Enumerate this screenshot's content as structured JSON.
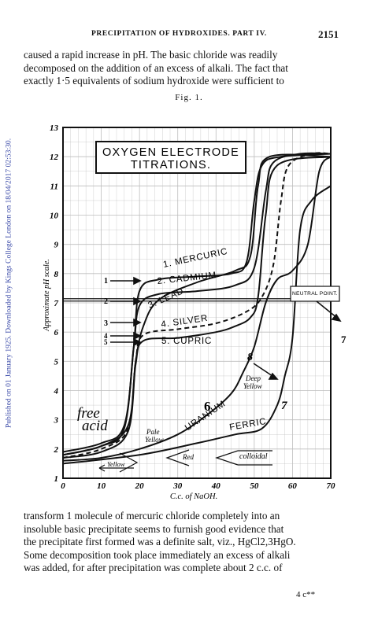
{
  "margin_note": "Published on 01 January 1925. Downloaded by Kings College London on 18/04/2017 02:53:30.",
  "header": {
    "running_head": "PRECIPITATION OF HYDROXIDES.  PART IV.",
    "page_number": "2151"
  },
  "top_text": {
    "line1": "caused a rapid increase in pH. The basic chloride was readily",
    "line2": "decomposed on the addition of an excess of alkali. The fact that",
    "line3": "exactly 1·5 equivalents of sodium hydroxide were sufficient to"
  },
  "figure": {
    "label": "Fig. 1.",
    "title_line1": "OXYGEN ELECTRODE",
    "title_line2": "TITRATIONS.",
    "ylabel": "Approximate pH scale.",
    "xlabel": "C.c. of NaOH.",
    "neutral_point": "NEUTRAL POINT.",
    "annotations": {
      "mercuric": "1. MERCURIC",
      "cadmium": "2. CADMIUM",
      "lead": "3. LEAD",
      "silver": "4. SILVER",
      "cupric": "5. CUPRIC",
      "uranium": "URANIUM",
      "ferric": "FERRIC",
      "num6": "6",
      "num7": "7",
      "num7b": "7",
      "num8": "8",
      "arrow1": "1",
      "arrow2": "2",
      "arrow3": "3",
      "arrow4": "4",
      "arrow5": "5",
      "free_acid1": "free",
      "free_acid2": "acid",
      "deep_yellow1": "Deep",
      "deep_yellow2": "Yellow",
      "pale_yellow1": "Pale",
      "pale_yellow2": "Yellow",
      "yellow": "Yellow",
      "red": "Red",
      "colloidal": "colloidal"
    }
  },
  "chart_data": {
    "type": "line",
    "title": "OXYGEN ELECTRODE TITRATIONS.",
    "xlabel": "C.c. of NaOH.",
    "ylabel": "Approximate pH scale.",
    "xlim": [
      0,
      70
    ],
    "ylim": [
      1,
      13
    ],
    "x_ticks": [
      "0",
      "10",
      "20",
      "30",
      "40",
      "50",
      "60",
      "70"
    ],
    "y_ticks": [
      "1",
      "2",
      "3",
      "4",
      "5",
      "6",
      "7",
      "8",
      "9",
      "10",
      "11",
      "12",
      "13"
    ],
    "neutral_point_ph": 7.1,
    "series": [
      {
        "name": "1. MERCURIC",
        "style": "solid",
        "points": [
          [
            0,
            1.9
          ],
          [
            10,
            2.2
          ],
          [
            16,
            2.8
          ],
          [
            18.5,
            5.5
          ],
          [
            20,
            7.4
          ],
          [
            25,
            7.8
          ],
          [
            35,
            7.9
          ],
          [
            44,
            8.0
          ],
          [
            48,
            8.4
          ],
          [
            50,
            10.5
          ],
          [
            52,
            11.7
          ],
          [
            57,
            12.0
          ],
          [
            70,
            12.1
          ]
        ]
      },
      {
        "name": "2. CADMIUM",
        "style": "solid",
        "points": [
          [
            0,
            1.8
          ],
          [
            10,
            2.1
          ],
          [
            16,
            2.7
          ],
          [
            18.5,
            5.5
          ],
          [
            20,
            6.9
          ],
          [
            25,
            7.3
          ],
          [
            35,
            7.4
          ],
          [
            45,
            7.6
          ],
          [
            50,
            8.2
          ],
          [
            53,
            10.8
          ],
          [
            55,
            11.8
          ],
          [
            62,
            12.1
          ],
          [
            70,
            12.1
          ]
        ]
      },
      {
        "name": "3. LEAD",
        "style": "solid",
        "points": [
          [
            0,
            1.8
          ],
          [
            10,
            2.1
          ],
          [
            17,
            2.8
          ],
          [
            19,
            5.0
          ],
          [
            21,
            6.2
          ],
          [
            25,
            7.1
          ],
          [
            35,
            7.7
          ],
          [
            45,
            8.1
          ],
          [
            49,
            8.6
          ],
          [
            51,
            11.0
          ],
          [
            54,
            12.0
          ],
          [
            70,
            12.0
          ]
        ]
      },
      {
        "name": "4. SILVER",
        "style": "dashed",
        "points": [
          [
            0,
            1.7
          ],
          [
            10,
            2.0
          ],
          [
            17,
            2.7
          ],
          [
            19,
            5.0
          ],
          [
            21,
            5.9
          ],
          [
            30,
            6.1
          ],
          [
            40,
            6.3
          ],
          [
            48,
            6.7
          ],
          [
            52,
            7.2
          ],
          [
            55,
            8.3
          ],
          [
            57,
            10.5
          ],
          [
            59,
            11.7
          ],
          [
            65,
            12.1
          ],
          [
            70,
            12.1
          ]
        ]
      },
      {
        "name": "5. CUPRIC",
        "style": "solid",
        "points": [
          [
            0,
            1.7
          ],
          [
            10,
            1.9
          ],
          [
            17,
            2.6
          ],
          [
            19,
            4.9
          ],
          [
            21,
            5.7
          ],
          [
            30,
            5.8
          ],
          [
            40,
            6.0
          ],
          [
            45,
            6.2
          ],
          [
            49,
            6.5
          ],
          [
            51,
            7.2
          ],
          [
            53,
            10.0
          ],
          [
            56,
            11.7
          ],
          [
            70,
            12.0
          ]
        ]
      },
      {
        "name": "6 URANIUM",
        "style": "solid",
        "points": [
          [
            0,
            1.6
          ],
          [
            10,
            1.7
          ],
          [
            20,
            2.0
          ],
          [
            30,
            2.5
          ],
          [
            38,
            3.2
          ],
          [
            44,
            3.9
          ],
          [
            47,
            4.6
          ],
          [
            50,
            5.5
          ],
          [
            53,
            7.0
          ],
          [
            56,
            7.8
          ],
          [
            60,
            8.1
          ],
          [
            64,
            9.0
          ],
          [
            67,
            11.5
          ],
          [
            70,
            12.0
          ]
        ]
      },
      {
        "name": "7 FERRIC",
        "style": "solid",
        "points": [
          [
            0,
            1.5
          ],
          [
            20,
            1.8
          ],
          [
            35,
            2.2
          ],
          [
            45,
            2.5
          ],
          [
            52,
            2.7
          ],
          [
            56,
            3.5
          ],
          [
            58,
            4.5
          ],
          [
            60,
            5.8
          ],
          [
            62,
            9.5
          ],
          [
            65,
            10.5
          ],
          [
            70,
            11.0
          ]
        ]
      }
    ],
    "regions": [
      "free acid",
      "Pale Yellow",
      "Yellow",
      "Red",
      "colloidal",
      "Deep Yellow"
    ]
  },
  "bottom_text": {
    "line1": "transform 1 molecule of mercuric chloride completely into an",
    "line2": "insoluble basic precipitate seems to furnish good evidence that",
    "line3": "the precipitate first formed was a definite salt, viz., HgCl2,3HgO.",
    "line4": "Some decomposition took place immediately an excess of alkali",
    "line5": "was added, for after precipitation was complete about 2 c.c. of"
  },
  "signature": "4 c**"
}
